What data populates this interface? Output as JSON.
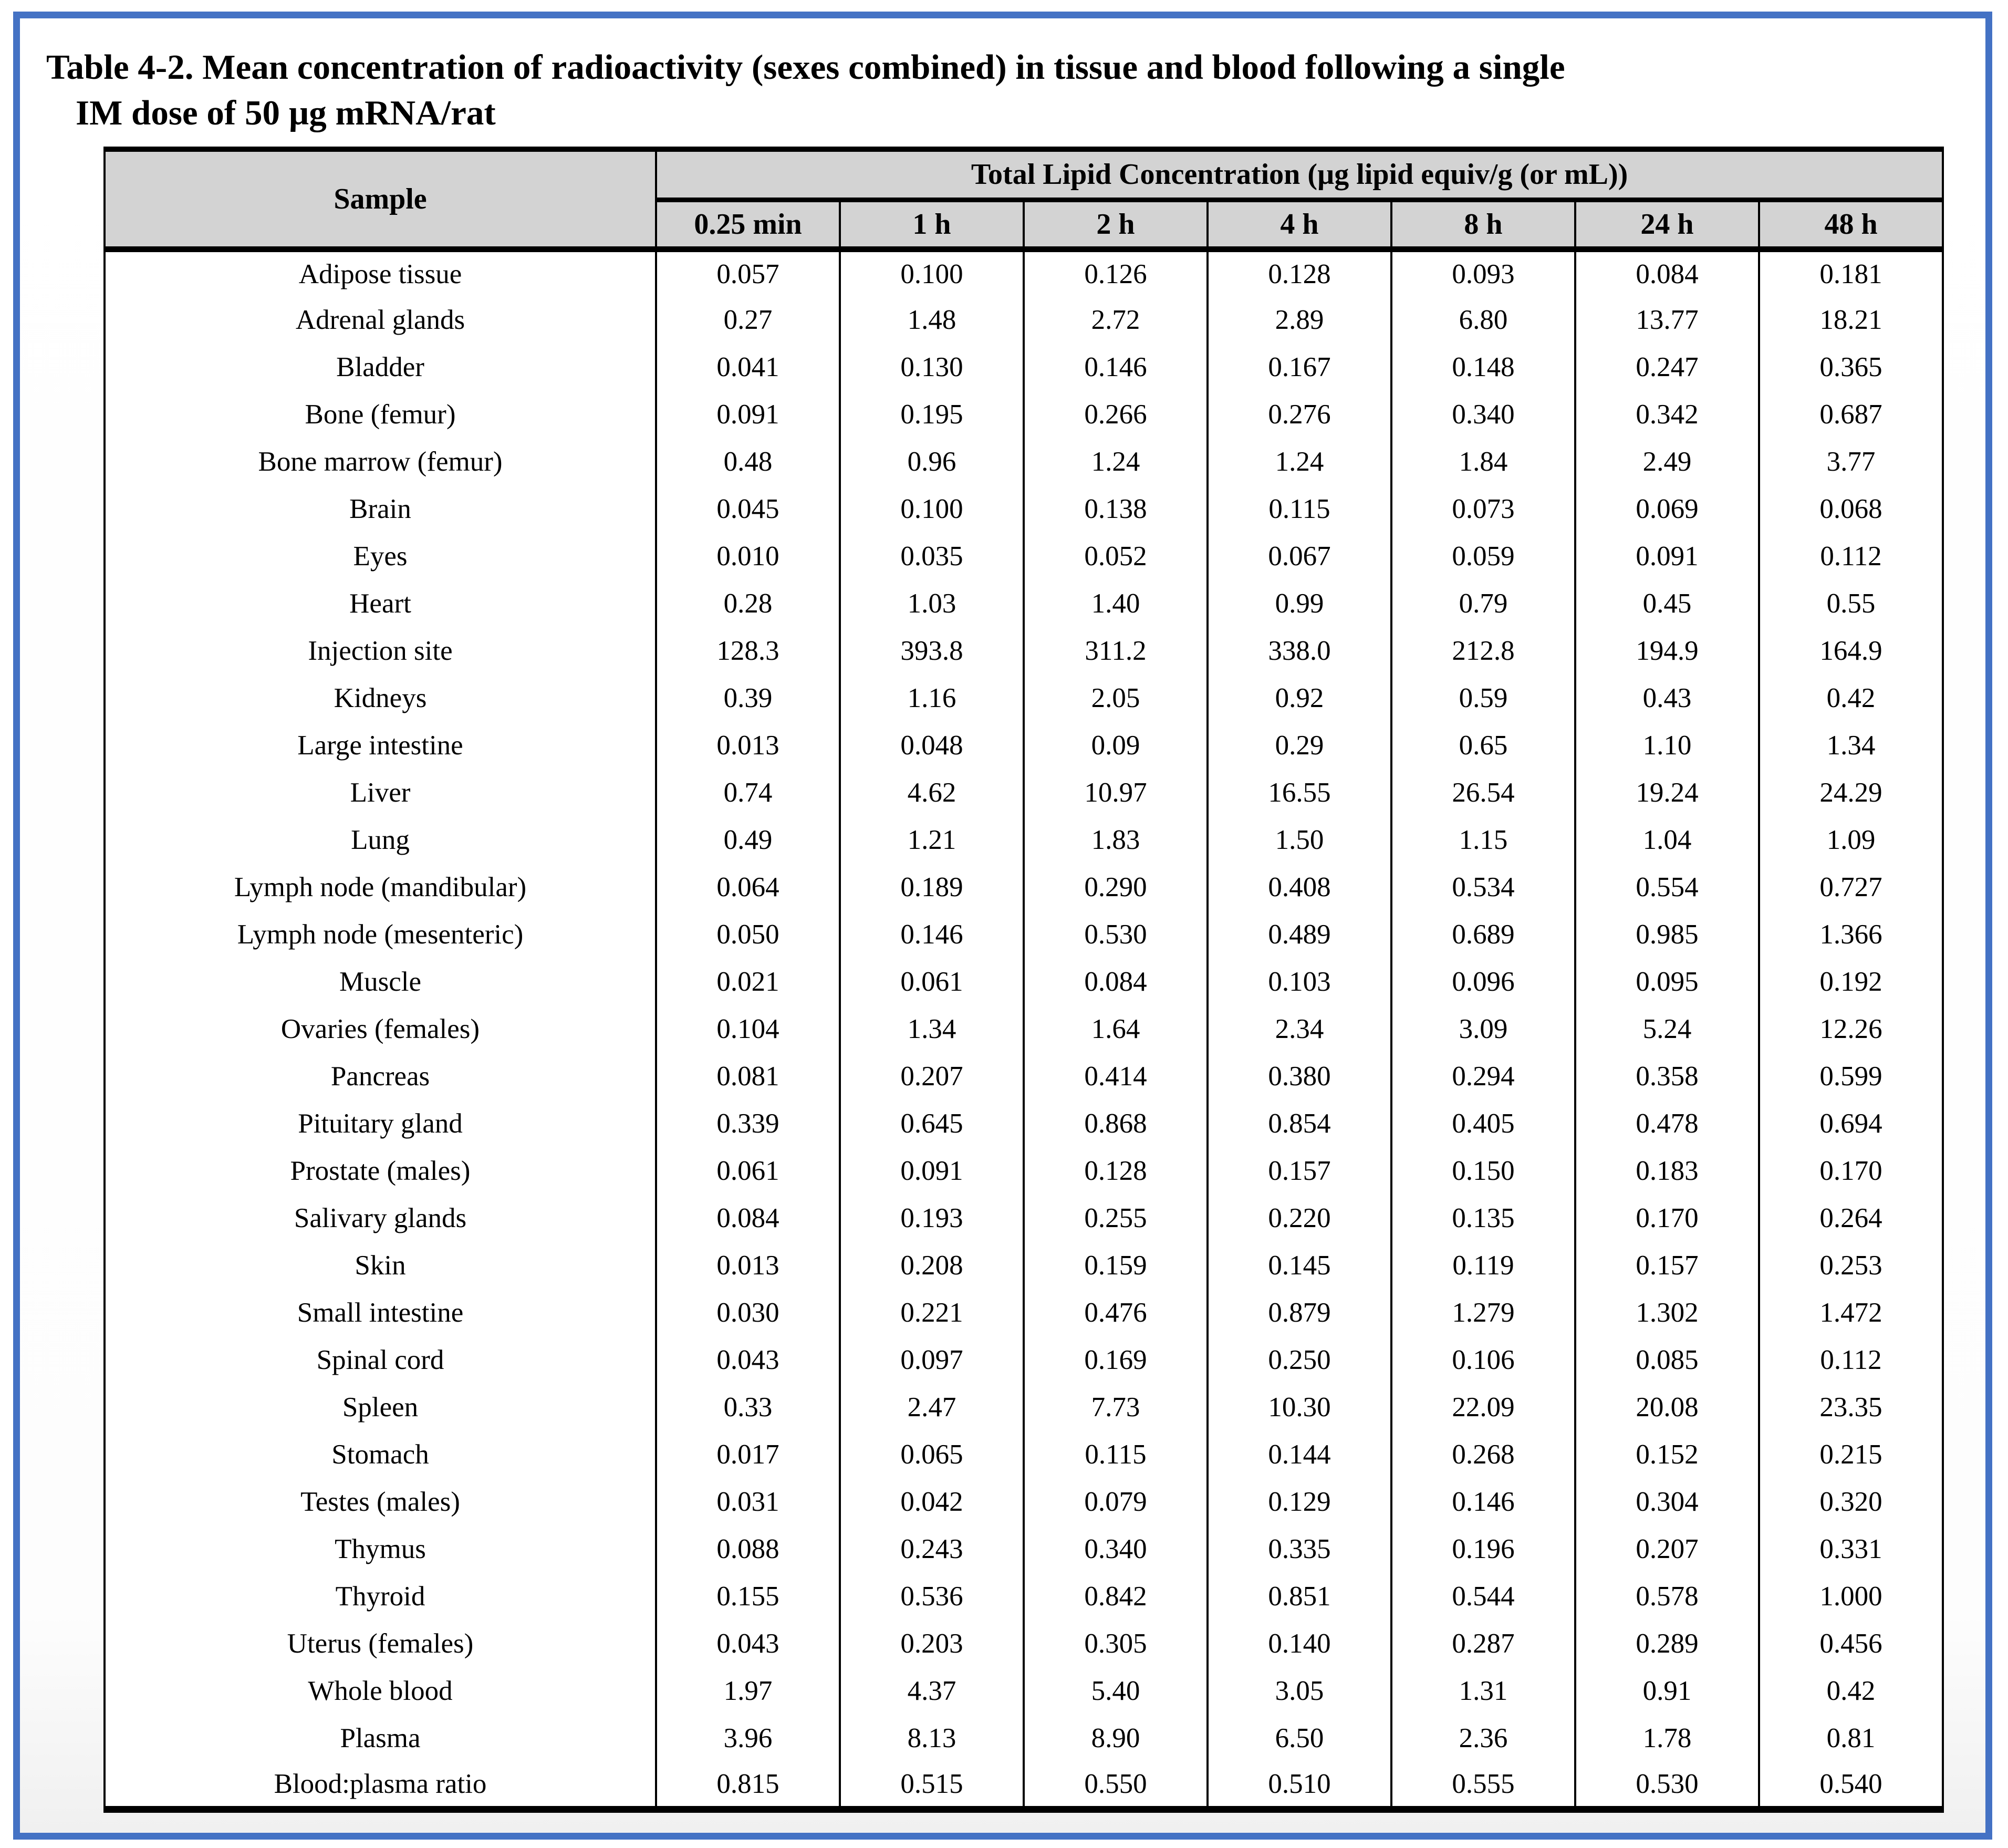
{
  "title": {
    "line1": "Table 4-2. Mean concentration of radioactivity (sexes combined) in tissue and blood following a single",
    "line2": "IM dose of 50 µg mRNA/rat"
  },
  "colors": {
    "page_border_blue": "#4472C4",
    "header_fill_gray": "#D3D3D3",
    "table_rule_black": "#000000"
  },
  "table": {
    "sample_header": "Sample",
    "group_header": "Total Lipid Concentration (µg lipid equiv/g (or mL))",
    "time_columns": [
      "0.25 min",
      "1 h",
      "2 h",
      "4 h",
      "8 h",
      "24 h",
      "48 h"
    ],
    "rows": [
      {
        "sample": "Adipose tissue",
        "values": [
          "0.057",
          "0.100",
          "0.126",
          "0.128",
          "0.093",
          "0.084",
          "0.181"
        ]
      },
      {
        "sample": "Adrenal glands",
        "values": [
          "0.27",
          "1.48",
          "2.72",
          "2.89",
          "6.80",
          "13.77",
          "18.21"
        ]
      },
      {
        "sample": "Bladder",
        "values": [
          "0.041",
          "0.130",
          "0.146",
          "0.167",
          "0.148",
          "0.247",
          "0.365"
        ]
      },
      {
        "sample": "Bone (femur)",
        "values": [
          "0.091",
          "0.195",
          "0.266",
          "0.276",
          "0.340",
          "0.342",
          "0.687"
        ]
      },
      {
        "sample": "Bone marrow (femur)",
        "values": [
          "0.48",
          "0.96",
          "1.24",
          "1.24",
          "1.84",
          "2.49",
          "3.77"
        ]
      },
      {
        "sample": "Brain",
        "values": [
          "0.045",
          "0.100",
          "0.138",
          "0.115",
          "0.073",
          "0.069",
          "0.068"
        ]
      },
      {
        "sample": "Eyes",
        "values": [
          "0.010",
          "0.035",
          "0.052",
          "0.067",
          "0.059",
          "0.091",
          "0.112"
        ]
      },
      {
        "sample": "Heart",
        "values": [
          "0.28",
          "1.03",
          "1.40",
          "0.99",
          "0.79",
          "0.45",
          "0.55"
        ]
      },
      {
        "sample": "Injection site",
        "values": [
          "128.3",
          "393.8",
          "311.2",
          "338.0",
          "212.8",
          "194.9",
          "164.9"
        ]
      },
      {
        "sample": "Kidneys",
        "values": [
          "0.39",
          "1.16",
          "2.05",
          "0.92",
          "0.59",
          "0.43",
          "0.42"
        ]
      },
      {
        "sample": "Large intestine",
        "values": [
          "0.013",
          "0.048",
          "0.09",
          "0.29",
          "0.65",
          "1.10",
          "1.34"
        ]
      },
      {
        "sample": "Liver",
        "values": [
          "0.74",
          "4.62",
          "10.97",
          "16.55",
          "26.54",
          "19.24",
          "24.29"
        ]
      },
      {
        "sample": "Lung",
        "values": [
          "0.49",
          "1.21",
          "1.83",
          "1.50",
          "1.15",
          "1.04",
          "1.09"
        ]
      },
      {
        "sample": "Lymph node (mandibular)",
        "values": [
          "0.064",
          "0.189",
          "0.290",
          "0.408",
          "0.534",
          "0.554",
          "0.727"
        ]
      },
      {
        "sample": "Lymph node (mesenteric)",
        "values": [
          "0.050",
          "0.146",
          "0.530",
          "0.489",
          "0.689",
          "0.985",
          "1.366"
        ]
      },
      {
        "sample": "Muscle",
        "values": [
          "0.021",
          "0.061",
          "0.084",
          "0.103",
          "0.096",
          "0.095",
          "0.192"
        ]
      },
      {
        "sample": "Ovaries (females)",
        "values": [
          "0.104",
          "1.34",
          "1.64",
          "2.34",
          "3.09",
          "5.24",
          "12.26"
        ]
      },
      {
        "sample": "Pancreas",
        "values": [
          "0.081",
          "0.207",
          "0.414",
          "0.380",
          "0.294",
          "0.358",
          "0.599"
        ]
      },
      {
        "sample": "Pituitary gland",
        "values": [
          "0.339",
          "0.645",
          "0.868",
          "0.854",
          "0.405",
          "0.478",
          "0.694"
        ]
      },
      {
        "sample": "Prostate (males)",
        "values": [
          "0.061",
          "0.091",
          "0.128",
          "0.157",
          "0.150",
          "0.183",
          "0.170"
        ]
      },
      {
        "sample": "Salivary glands",
        "values": [
          "0.084",
          "0.193",
          "0.255",
          "0.220",
          "0.135",
          "0.170",
          "0.264"
        ]
      },
      {
        "sample": "Skin",
        "values": [
          "0.013",
          "0.208",
          "0.159",
          "0.145",
          "0.119",
          "0.157",
          "0.253"
        ]
      },
      {
        "sample": "Small intestine",
        "values": [
          "0.030",
          "0.221",
          "0.476",
          "0.879",
          "1.279",
          "1.302",
          "1.472"
        ]
      },
      {
        "sample": "Spinal cord",
        "values": [
          "0.043",
          "0.097",
          "0.169",
          "0.250",
          "0.106",
          "0.085",
          "0.112"
        ]
      },
      {
        "sample": "Spleen",
        "values": [
          "0.33",
          "2.47",
          "7.73",
          "10.30",
          "22.09",
          "20.08",
          "23.35"
        ]
      },
      {
        "sample": "Stomach",
        "values": [
          "0.017",
          "0.065",
          "0.115",
          "0.144",
          "0.268",
          "0.152",
          "0.215"
        ]
      },
      {
        "sample": "Testes (males)",
        "values": [
          "0.031",
          "0.042",
          "0.079",
          "0.129",
          "0.146",
          "0.304",
          "0.320"
        ]
      },
      {
        "sample": "Thymus",
        "values": [
          "0.088",
          "0.243",
          "0.340",
          "0.335",
          "0.196",
          "0.207",
          "0.331"
        ]
      },
      {
        "sample": "Thyroid",
        "values": [
          "0.155",
          "0.536",
          "0.842",
          "0.851",
          "0.544",
          "0.578",
          "1.000"
        ]
      },
      {
        "sample": "Uterus (females)",
        "values": [
          "0.043",
          "0.203",
          "0.305",
          "0.140",
          "0.287",
          "0.289",
          "0.456"
        ]
      },
      {
        "sample": "Whole blood",
        "values": [
          "1.97",
          "4.37",
          "5.40",
          "3.05",
          "1.31",
          "0.91",
          "0.42"
        ]
      },
      {
        "sample": "Plasma",
        "values": [
          "3.96",
          "8.13",
          "8.90",
          "6.50",
          "2.36",
          "1.78",
          "0.81"
        ]
      },
      {
        "sample": "Blood:plasma ratio",
        "values": [
          "0.815",
          "0.515",
          "0.550",
          "0.510",
          "0.555",
          "0.530",
          "0.540"
        ]
      }
    ]
  }
}
